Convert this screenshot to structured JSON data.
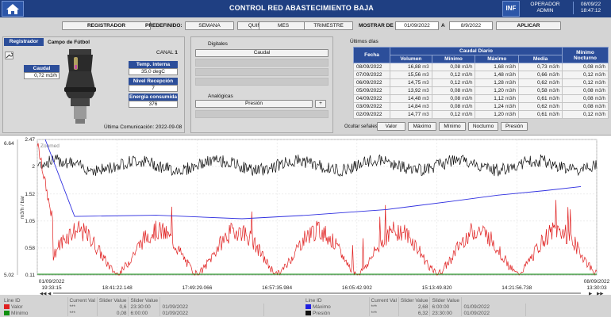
{
  "header": {
    "title": "CONTROL RED ABASTECIMIENTO BAJA",
    "info_button": "INF",
    "user_role": "OPERADOR",
    "user_name": "ADMIN",
    "date": "08/09/22",
    "time": "18:47:12"
  },
  "toolbar": {
    "registrador_button": "REGISTRADOR",
    "predefinido_label": "PREDEFINIDO:",
    "periods": [
      "SEMANA",
      "QUINCENA",
      "MES",
      "TRIMESTRE"
    ],
    "mostrar_de_label": "MOSTRAR DE",
    "from_date": "01/09/2022",
    "to_label": "A",
    "to_date": "8/9/2022",
    "apply_button": "APLICAR"
  },
  "registrador": {
    "tab_label": "Registrador",
    "name": "Campo de Fútbol",
    "canal_label": "CANAL",
    "canal_value": "1",
    "caudal_label": "Caudal",
    "caudal_value": "0,72",
    "caudal_unit": "m3/h",
    "temp_label": "Temp. interna",
    "temp_value": "35,0 degC",
    "nivel_label": "Nivel Recepción",
    "nivel_value": "7",
    "energia_label": "Energía consumida",
    "energia_value": "376",
    "last_comm_label": "Última Comunicación:",
    "last_comm_value": "2022-09-08"
  },
  "signals": {
    "digitales_label": "Digitales",
    "digital_item": "Caudal",
    "analogicas_label": "Analógicas",
    "analog_item": "Presión",
    "add_button": "+"
  },
  "ultimos_dias": {
    "title": "Últimos días",
    "headers": {
      "fecha": "Fecha",
      "caudal_diario": "Caudal Diario",
      "volumen": "Volumen",
      "minimo": "Mínimo",
      "maximo": "Máximo",
      "media": "Media",
      "minimo_nocturno": "Mínimo Nocturno"
    },
    "unit_vol": "m3",
    "unit_flow": "m3/h",
    "rows": [
      {
        "fecha": "08/09/2022",
        "volumen": "16,88",
        "minimo": "0,08",
        "maximo": "1,68",
        "media": "0,73",
        "nocturno": "0,08"
      },
      {
        "fecha": "07/09/2022",
        "volumen": "15,56",
        "minimo": "0,12",
        "maximo": "1,48",
        "media": "0,66",
        "nocturno": "0,12"
      },
      {
        "fecha": "06/09/2022",
        "volumen": "14,75",
        "minimo": "0,12",
        "maximo": "1,28",
        "media": "0,62",
        "nocturno": "0,12"
      },
      {
        "fecha": "05/09/2022",
        "volumen": "13,92",
        "minimo": "0,08",
        "maximo": "1,20",
        "media": "0,58",
        "nocturno": "0,08"
      },
      {
        "fecha": "04/09/2022",
        "volumen": "14,48",
        "minimo": "0,08",
        "maximo": "1,12",
        "media": "0,61",
        "nocturno": "0,08"
      },
      {
        "fecha": "03/09/2022",
        "volumen": "14,84",
        "minimo": "0,08",
        "maximo": "1,24",
        "media": "0,62",
        "nocturno": "0,08"
      },
      {
        "fecha": "02/09/2022",
        "volumen": "14,77",
        "minimo": "0,12",
        "maximo": "1,20",
        "media": "0,61",
        "nocturno": "0,12"
      }
    ]
  },
  "signal_toggles": {
    "label": "Ocultar señales",
    "buttons": [
      "Valor",
      "Máximo",
      "Mínimo",
      "Nocturno",
      "Presión"
    ]
  },
  "chart": {
    "zoomed_label": "Zoomed",
    "ylabel": "m3/h / bar",
    "y_ticks": [
      "2.47",
      "2",
      "1.52",
      "1.05",
      "0.58",
      "0.11"
    ],
    "y_outer_ticks": [
      "6.64",
      "5.02"
    ],
    "x_start": {
      "date": "01/09/2022",
      "time": "19:33:15"
    },
    "x_end": {
      "date": "08/09/2022",
      "time": "13:30:03"
    },
    "x_ticks": [
      "18:41:22.148",
      "17:49:29.066",
      "16:57:35.984",
      "16:05:42.902",
      "15:13:49.820",
      "14:21:56.738"
    ],
    "nav_buttons": [
      "◀◀",
      "◀",
      "▶",
      "▶▶"
    ]
  },
  "legend": {
    "headers": [
      "Line ID",
      "Current Val",
      "Slider Value",
      "Slider Value"
    ],
    "rows": [
      {
        "name": "Valor",
        "color": "#e02020",
        "current": "***",
        "v1": "0,6",
        "v2": "23:30:00",
        "v3": "01/09/2022"
      },
      {
        "name": "Mínimo",
        "color": "#109010",
        "current": "***",
        "v1": "0,08",
        "v2": "6:00:00",
        "v3": "01/09/2022"
      },
      {
        "name": "Máximo",
        "color": "#2020e0",
        "current": "***",
        "v1": "2,68",
        "v2": "6:00:00",
        "v3": "01/09/2022"
      },
      {
        "name": "Presión",
        "color": "#111111",
        "current": "***",
        "v1": "6,32",
        "v2": "23:30:00",
        "v3": "01/09/2022"
      }
    ]
  },
  "chart_data": {
    "type": "line",
    "ylim": [
      0.11,
      2.47
    ],
    "x_start": "01/09/2022 19:33:15",
    "x_end": "08/09/2022 13:30:03",
    "series": [
      {
        "name": "Valor",
        "color": "#e02020"
      },
      {
        "name": "Máximo",
        "color": "#2020e0",
        "values": [
          2.47,
          1.13,
          1.15,
          1.09,
          1.15,
          1.25,
          1.39,
          1.5,
          1.58,
          1.65
        ]
      },
      {
        "name": "Mínimo",
        "color": "#109010"
      },
      {
        "name": "Presión",
        "color": "#111111"
      }
    ]
  }
}
